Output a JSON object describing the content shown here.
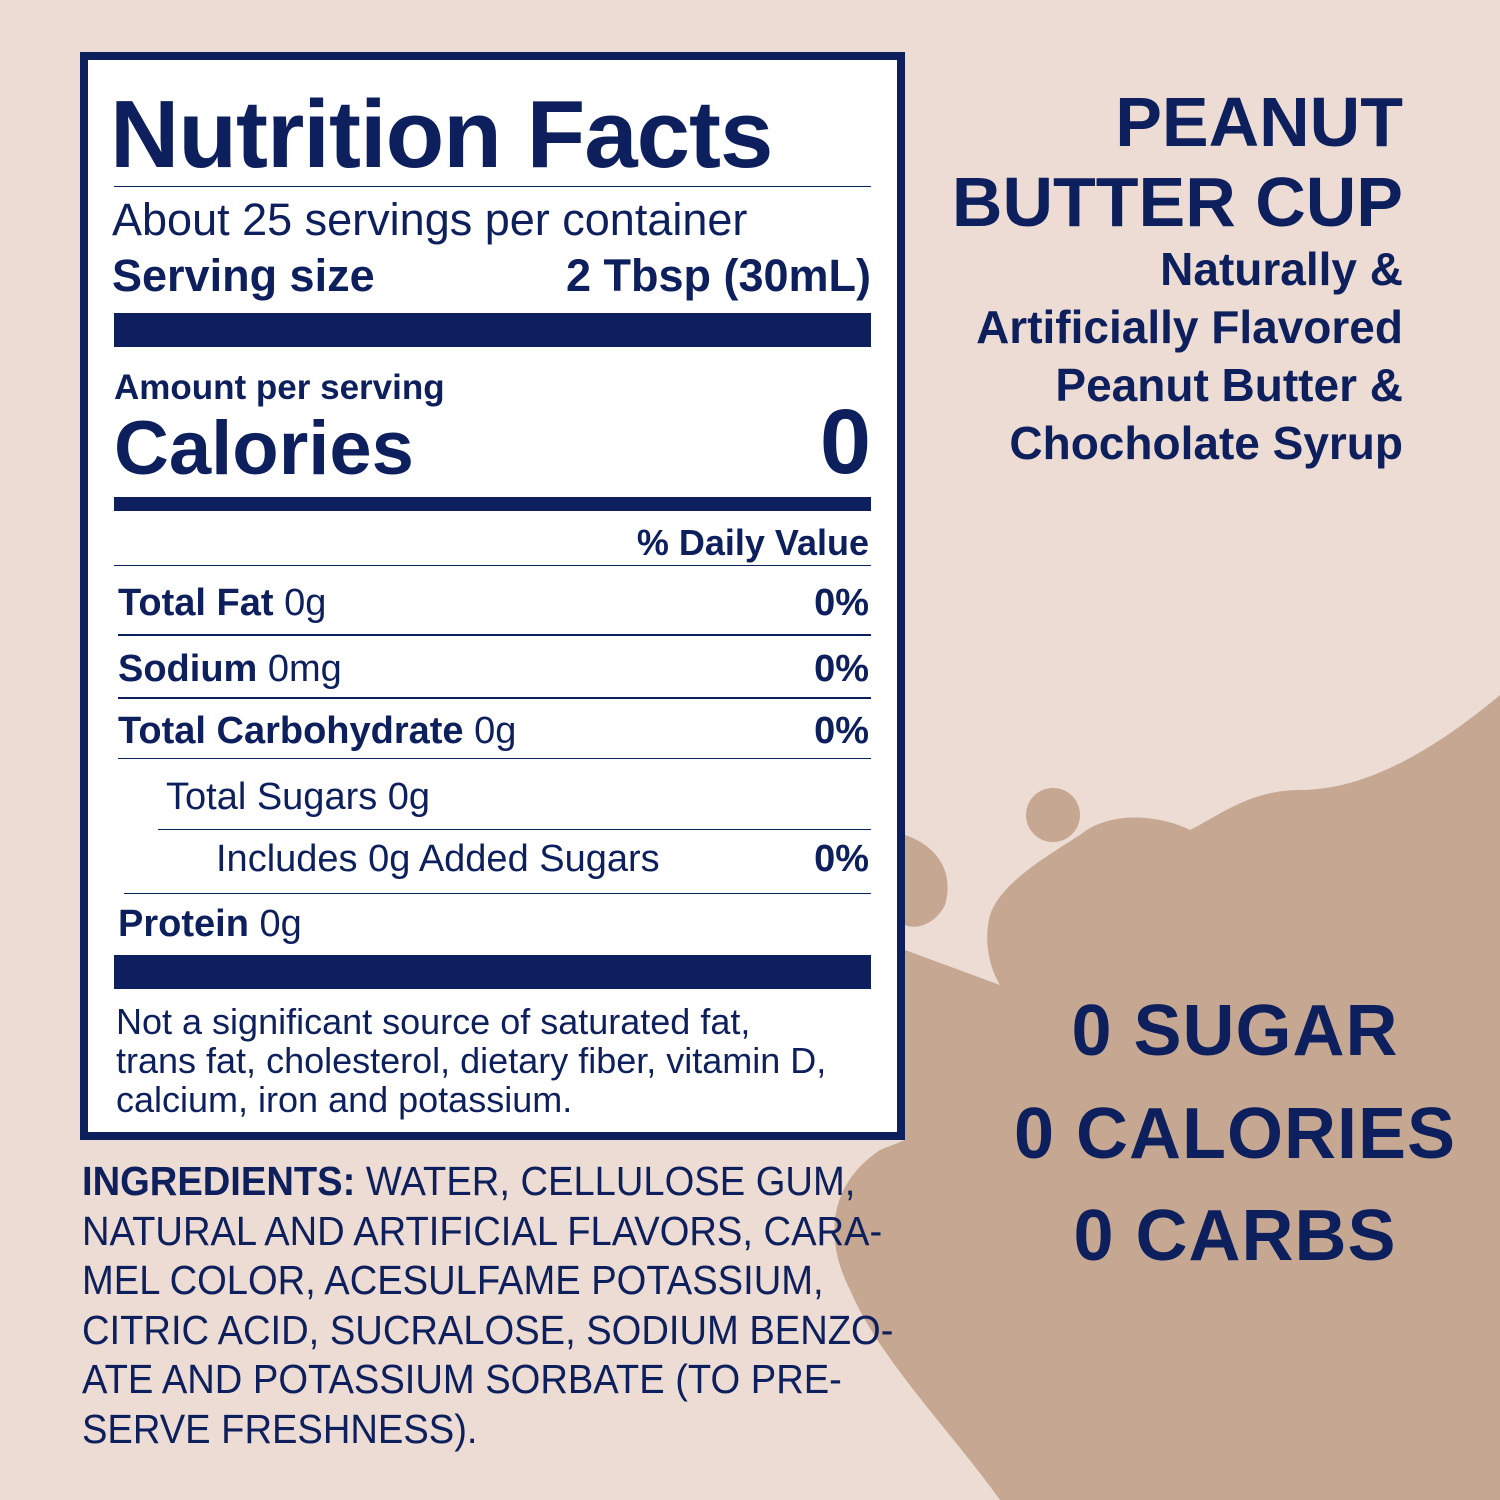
{
  "colors": {
    "background": "#ecdcd3",
    "navy": "#0d1f5c",
    "blob": "#c6a892"
  },
  "label": {
    "title": "Nutrition Facts",
    "servings": "About 25 servings per container",
    "serving_size_label": "Serving size",
    "serving_size_value": "2 Tbsp (30mL)",
    "amount_per_serving": "Amount per serving",
    "calories_label": "Calories",
    "calories_value": "0",
    "daily_value_header": "% Daily Value",
    "rows": [
      {
        "name": "Total Fat",
        "amount": "0g",
        "dv": "0%"
      },
      {
        "name": "Sodium",
        "amount": "0mg",
        "dv": "0%"
      },
      {
        "name": "Total Carbohydrate",
        "amount": "0g",
        "dv": "0%"
      },
      {
        "name": "",
        "amount": "Total Sugars 0g",
        "dv": ""
      },
      {
        "name": "",
        "amount": "Includes 0g Added Sugars",
        "dv": "0%"
      },
      {
        "name": "Protein",
        "amount": "0g",
        "dv": ""
      }
    ],
    "footnote": [
      "Not a significant source of saturated fat,",
      "trans fat, cholesterol, dietary fiber, vitamin D,",
      "calcium, iron and potassium."
    ]
  },
  "ingredients": {
    "heading": "INGREDIENTS:",
    "lines": [
      " WATER, CELLULOSE GUM,",
      "NATURAL AND ARTIFICIAL FLAVORS, CARA-",
      "MEL COLOR, ACESULFAME POTASSIUM,",
      "CITRIC ACID, SUCRALOSE, SODIUM BENZO-",
      "ATE AND POTASSIUM SORBATE (TO PRE-",
      "SERVE FRESHNESS)."
    ]
  },
  "product": {
    "name_lines": [
      "PEANUT",
      "BUTTER CUP"
    ],
    "description_lines": [
      "Naturally &",
      "Artificially Flavored",
      "Peanut Butter &",
      "Chocholate Syrup"
    ],
    "claims": [
      "0 SUGAR",
      "0 CALORIES",
      "0 CARBS"
    ]
  }
}
